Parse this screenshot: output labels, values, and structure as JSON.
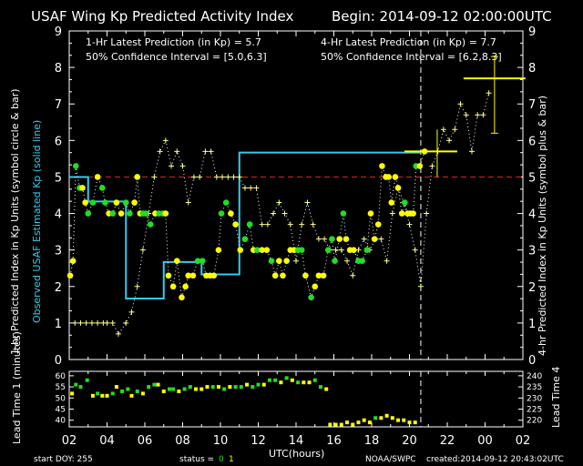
{
  "header": {
    "title": "USAF Wing Kp Predicted Activity Index",
    "begin": "Begin: 2014-09-12 02:00:00UTC",
    "pred1": "1-Hr Latest Prediction (in Kp) = 5.7",
    "conf1": "50% Confidence Interval  =  [5.0,6.3]",
    "pred4": "4-Hr Latest Prediction (in Kp) = 7.7",
    "conf4": "50% Confidence Interval  =  [6.2,8.3]"
  },
  "footer": {
    "start_doy": "start DOY:  255",
    "status_label": "status =",
    "status_0": "0",
    "status_1": "1",
    "credit": "NOAA/SWPC",
    "created": "created:2014-09-12 20:43:02UTC"
  },
  "colors": {
    "estimated": "#33CCEE",
    "pred_1hr_yellow": "#FFFF00",
    "pred_1hr_green": "#22DD22",
    "storm_threshold": "#DD2222",
    "pred_4hr": "#FFFF88",
    "cursor": "#FFFFFF"
  },
  "chart_data": [
    {
      "type": "line",
      "ylabel_left_1": "1-hr Predicted Index in Kp Units (symbol circle & bar)",
      "ylabel_left_2": "Observed USAF Estimated Kp (solid line)",
      "ylabel_right": "4-hr Predicted Index in Kp Units (symbol plus & bar)",
      "x_ticks": [
        "02",
        "04",
        "06",
        "08",
        "10",
        "12",
        "14",
        "16",
        "18",
        "20",
        "22",
        "00",
        "02"
      ],
      "xlim": [
        0,
        24
      ],
      "ylim": [
        0,
        9
      ],
      "y_ticks": [
        "0",
        "1",
        "2",
        "3",
        "4",
        "5",
        "6",
        "7",
        "8",
        "9"
      ],
      "threshold": 5,
      "current_time": 18.6,
      "observed_kp": {
        "x": [
          0,
          1,
          1,
          3,
          3,
          5,
          5,
          7,
          7,
          9,
          9,
          11,
          11,
          13,
          13,
          17,
          17,
          18.6
        ],
        "y": [
          5,
          5,
          4.33,
          4.33,
          1.67,
          1.67,
          2.67,
          2.67,
          2.33,
          2.33,
          5.67,
          5.67,
          5.67,
          5.67,
          5.67,
          5.67,
          5.67,
          5.67
        ]
      },
      "pred_1hr": {
        "x": [
          0.05,
          0.2,
          0.35,
          0.55,
          0.7,
          0.85,
          1.0,
          1.25,
          1.5,
          1.75,
          1.9,
          2.1,
          2.3,
          2.5,
          2.75,
          3.0,
          3.2,
          3.45,
          3.6,
          3.75,
          3.9,
          4.05,
          4.3,
          4.55,
          4.75,
          4.95,
          5.1,
          5.25,
          5.5,
          5.7,
          5.95,
          6.15,
          6.3,
          6.55,
          6.8,
          7.05,
          7.25,
          7.45,
          7.65,
          7.9,
          8.05,
          8.3,
          8.55,
          8.8,
          9.05,
          9.3,
          9.55,
          9.75,
          9.95,
          10.2,
          10.45,
          10.7,
          10.9,
          11.1,
          11.3,
          11.5,
          11.7,
          11.9,
          12.1,
          12.3,
          12.5,
          12.8,
          13.0,
          13.2,
          13.45,
          13.7,
          13.9,
          14.05,
          14.3,
          14.5,
          14.65,
          14.85,
          15.05,
          15.3,
          15.5,
          15.75,
          15.95,
          16.15,
          16.35,
          16.55,
          16.75,
          16.9,
          17.05,
          17.25,
          17.4,
          17.6,
          17.75,
          17.9,
          18.05,
          18.2,
          18.35,
          18.55,
          18.8
        ],
        "y": [
          2.3,
          2.7,
          5.3,
          4.7,
          4.7,
          4.3,
          4.0,
          4.3,
          5.0,
          4.7,
          4.3,
          4.0,
          4.0,
          4.3,
          4.0,
          4.3,
          4.0,
          4.3,
          5.0,
          4.0,
          4.0,
          4.0,
          3.7,
          4.0,
          4.0,
          4.0,
          4.0,
          2.3,
          2.0,
          2.7,
          1.7,
          2.0,
          2.3,
          2.3,
          2.7,
          2.7,
          2.3,
          2.3,
          2.3,
          3.0,
          4.0,
          4.3,
          4.0,
          3.7,
          3.0,
          3.3,
          3.7,
          3.0,
          3.0,
          3.0,
          3.0,
          2.7,
          2.3,
          2.7,
          2.3,
          2.7,
          3.0,
          3.0,
          3.0,
          3.0,
          2.3,
          1.7,
          2.0,
          2.3,
          2.3,
          3.0,
          3.3,
          2.7,
          3.3,
          4.0,
          3.3,
          3.0,
          3.0,
          2.7,
          2.7,
          3.0,
          4.0,
          3.3,
          3.7,
          5.3,
          5.0,
          5.0,
          4.3,
          5.0,
          4.7,
          4.0,
          4.3,
          4.0,
          4.0,
          4.0,
          5.3,
          5.3,
          5.7
        ],
        "color": [
          "y",
          "y",
          "g",
          "g",
          "y",
          "y",
          "g",
          "g",
          "y",
          "g",
          "g",
          "y",
          "g",
          "y",
          "y",
          "g",
          "g",
          "y",
          "y",
          "y",
          "g",
          "g",
          "g",
          "y",
          "g",
          "g",
          "y",
          "y",
          "y",
          "y",
          "y",
          "y",
          "y",
          "y",
          "g",
          "g",
          "y",
          "y",
          "y",
          "y",
          "g",
          "g",
          "y",
          "y",
          "y",
          "g",
          "g",
          "y",
          "g",
          "y",
          "y",
          "g",
          "y",
          "y",
          "y",
          "y",
          "y",
          "y",
          "g",
          "g",
          "y",
          "g",
          "y",
          "y",
          "y",
          "g",
          "g",
          "g",
          "y",
          "g",
          "y",
          "y",
          "y",
          "g",
          "g",
          "g",
          "y",
          "y",
          "y",
          "y",
          "y",
          "y",
          "y",
          "y",
          "y",
          "y",
          "g",
          "y",
          "y",
          "y",
          "g",
          "y",
          "y"
        ]
      },
      "pred_4hr": {
        "x": [
          0.3,
          0.6,
          0.9,
          1.2,
          1.5,
          1.8,
          2.0,
          2.3,
          2.6,
          3.0,
          3.3,
          3.6,
          3.9,
          4.2,
          4.5,
          4.8,
          5.1,
          5.4,
          5.7,
          6.0,
          6.3,
          6.6,
          6.9,
          7.2,
          7.5,
          7.8,
          8.1,
          8.4,
          8.7,
          9.0,
          9.3,
          9.6,
          9.9,
          10.2,
          10.5,
          10.8,
          11.1,
          11.4,
          11.7,
          12.0,
          12.3,
          12.6,
          12.9,
          13.2,
          13.5,
          13.8,
          14.1,
          14.4,
          14.7,
          15.0,
          15.3,
          15.6,
          15.9,
          16.2,
          16.5,
          16.8,
          17.1,
          17.4,
          17.7,
          18.0,
          18.3,
          18.6,
          18.9,
          19.2,
          19.5,
          19.8,
          20.1,
          20.4,
          20.7,
          21.0,
          21.3,
          21.6,
          21.9,
          22.2
        ],
        "y": [
          1.0,
          1.0,
          1.0,
          1.0,
          1.0,
          1.0,
          1.0,
          1.0,
          0.7,
          1.0,
          1.3,
          2.0,
          3.0,
          4.0,
          5.0,
          5.7,
          6.0,
          5.3,
          5.7,
          5.3,
          4.3,
          5.0,
          5.0,
          5.7,
          5.7,
          5.0,
          5.0,
          5.0,
          5.0,
          5.0,
          4.7,
          4.7,
          4.7,
          3.7,
          3.7,
          4.0,
          4.3,
          4.0,
          3.7,
          2.7,
          3.7,
          4.3,
          3.7,
          3.3,
          3.3,
          3.0,
          3.0,
          3.0,
          2.7,
          2.3,
          3.0,
          3.3,
          3.0,
          3.3,
          3.3,
          2.7,
          4.0,
          4.7,
          4.3,
          3.7,
          3.0,
          2.0,
          4.0,
          5.3,
          5.7,
          6.3,
          6.0,
          6.3,
          7.0,
          6.7,
          5.7,
          6.7,
          6.7,
          7.3
        ],
        "latest_4hr": 7.7,
        "latest_4hr_interval": [
          6.2,
          8.3
        ],
        "latest_1hr": 5.7,
        "latest_1hr_interval": [
          5.0,
          6.3
        ]
      }
    },
    {
      "type": "scatter",
      "ylabel": "Lead Time 1 (minutes)",
      "ylabel_right": "Lead Time 4",
      "xlabel": "UTC(hours)",
      "ylim": [
        37,
        62
      ],
      "y_ticks": [
        "40",
        "45",
        "50",
        "55",
        "60"
      ],
      "y_ticks_right": [
        "220",
        "225",
        "230",
        "235",
        "240"
      ],
      "lead_time_1": {
        "x": [
          0.15,
          0.35,
          0.6,
          0.95,
          1.25,
          1.5,
          1.75,
          2.0,
          2.3,
          2.5,
          2.8,
          3.1,
          3.3,
          3.6,
          3.9,
          4.2,
          4.5,
          4.7,
          5.0,
          5.3,
          5.5,
          5.8,
          6.1,
          6.4,
          6.7,
          7.0,
          7.3,
          7.6,
          7.9,
          8.2,
          8.5,
          8.8,
          9.1,
          9.4,
          9.7,
          10.0,
          10.3,
          10.6,
          10.9,
          11.2,
          11.5,
          11.8,
          12.1,
          12.4,
          12.7,
          13.0,
          13.3,
          13.6,
          13.8,
          14.1,
          14.4,
          14.7,
          15.0,
          15.3,
          15.6,
          15.9,
          16.2,
          16.5,
          16.8,
          17.1,
          17.4,
          17.7,
          18.0,
          18.3
        ],
        "y": [
          52,
          56,
          55,
          58,
          51,
          52,
          51,
          51,
          52,
          55,
          53,
          54,
          51,
          53,
          52,
          55,
          56,
          56,
          53,
          54,
          54,
          53,
          54,
          55,
          54,
          54,
          55,
          55,
          55,
          54,
          55,
          55,
          55,
          56,
          55,
          56,
          56,
          58,
          58,
          57,
          59,
          58,
          57,
          57,
          57,
          58,
          55,
          54,
          38,
          38,
          38,
          39,
          38,
          39,
          40,
          39,
          41,
          41,
          42,
          41,
          40,
          40,
          39,
          39
        ],
        "color": [
          "y",
          "g",
          "g",
          "g",
          "y",
          "g",
          "y",
          "y",
          "g",
          "y",
          "g",
          "g",
          "y",
          "g",
          "y",
          "g",
          "g",
          "y",
          "y",
          "g",
          "g",
          "y",
          "g",
          "g",
          "y",
          "y",
          "y",
          "g",
          "y",
          "g",
          "y",
          "g",
          "g",
          "y",
          "g",
          "g",
          "y",
          "g",
          "g",
          "y",
          "g",
          "y",
          "g",
          "y",
          "y",
          "g",
          "g",
          "y",
          "y",
          "y",
          "y",
          "y",
          "y",
          "y",
          "y",
          "y",
          "g",
          "y",
          "y",
          "y",
          "y",
          "y",
          "y",
          "y"
        ]
      }
    }
  ]
}
